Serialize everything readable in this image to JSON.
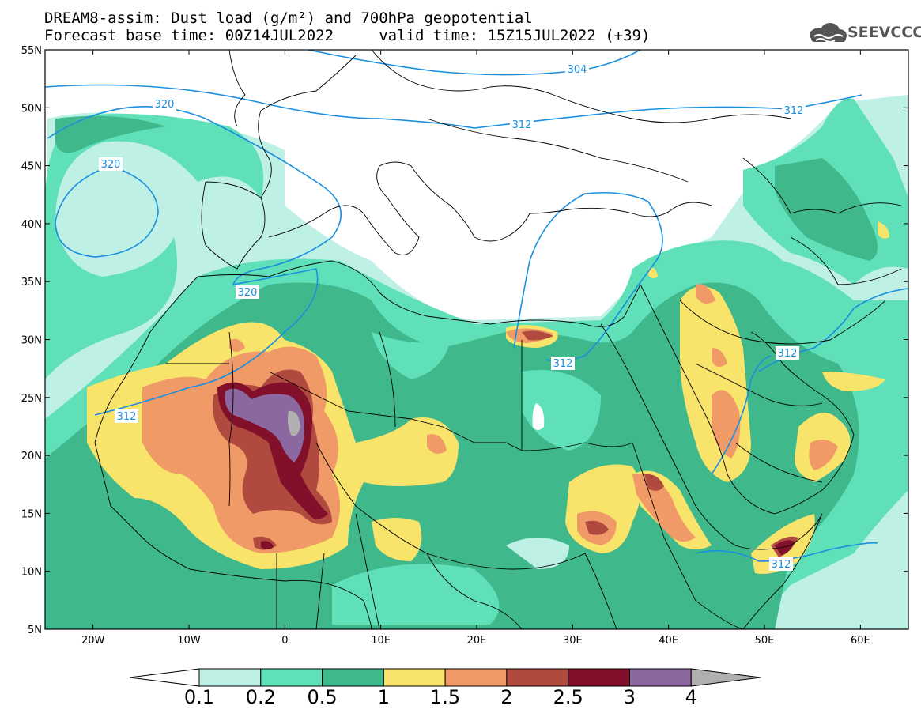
{
  "header": {
    "line1": "DREAM8-assim: Dust load (g/m²) and 700hPa geopotential",
    "line2": "Forecast base time: 00Z14JUL2022     valid time: 15Z15JUL2022 (+39)"
  },
  "logo": {
    "text": "SEEVCCC",
    "icon": "cloud-logo-icon"
  },
  "axes": {
    "lat_labels": [
      "55N",
      "50N",
      "45N",
      "40N",
      "35N",
      "30N",
      "25N",
      "20N",
      "15N",
      "10N",
      "5N"
    ],
    "lon_labels": [
      "20W",
      "10W",
      "0",
      "10E",
      "20E",
      "30E",
      "40E",
      "50E",
      "60E"
    ]
  },
  "contours": {
    "labels": [
      "304",
      "312",
      "320",
      "312",
      "320",
      "320",
      "312",
      "312",
      "312",
      "312"
    ]
  },
  "colorbar": {
    "labels": [
      "0.1",
      "0.2",
      "0.5",
      "1",
      "1.5",
      "2",
      "2.5",
      "3",
      "4"
    ],
    "colors": [
      "#bff0e6",
      "#5fe0b8",
      "#3fb88c",
      "#f8e46a",
      "#f09a68",
      "#b04a3e",
      "#82102a",
      "#8c68a0",
      "#b0b0b0"
    ],
    "under_color": "#ffffff"
  },
  "colors": {
    "contour": "#1a8fe0",
    "border": "#000000",
    "frame": "#000000"
  }
}
